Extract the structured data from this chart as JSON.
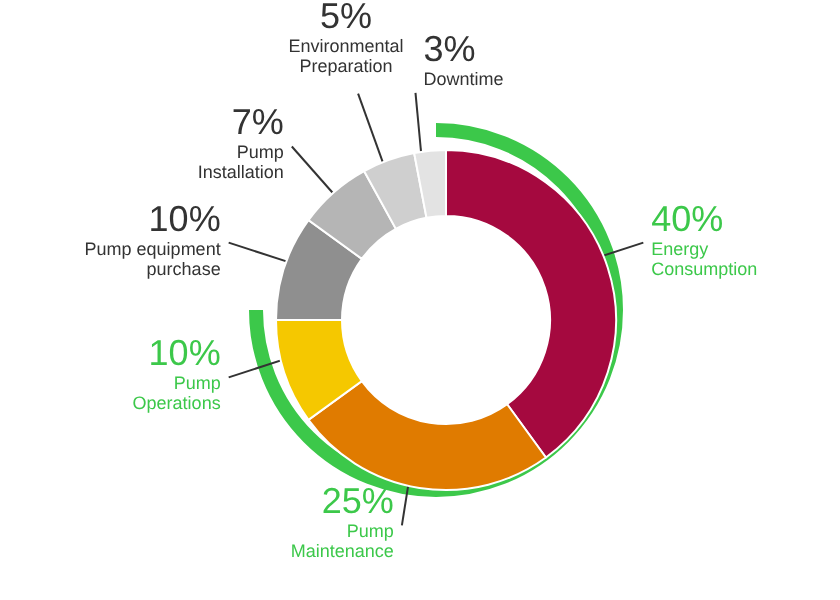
{
  "chart_data": {
    "type": "donut",
    "categories": [
      "Energy Consumption",
      "Pump Maintenance",
      "Pump Operations",
      "Pump equipment purchase",
      "Pump Installation",
      "Environmental Preparation",
      "Downtime"
    ],
    "values": [
      40,
      25,
      10,
      10,
      7,
      5,
      3
    ],
    "value_labels": [
      "40%",
      "25%",
      "10%",
      "10%",
      "7%",
      "5%",
      "3%"
    ],
    "colors": [
      "#a5093f",
      "#e07b00",
      "#f5c800",
      "#8f8f8f",
      "#b5b5b5",
      "#cfcfcf",
      "#e3e3e3"
    ]
  }
}
